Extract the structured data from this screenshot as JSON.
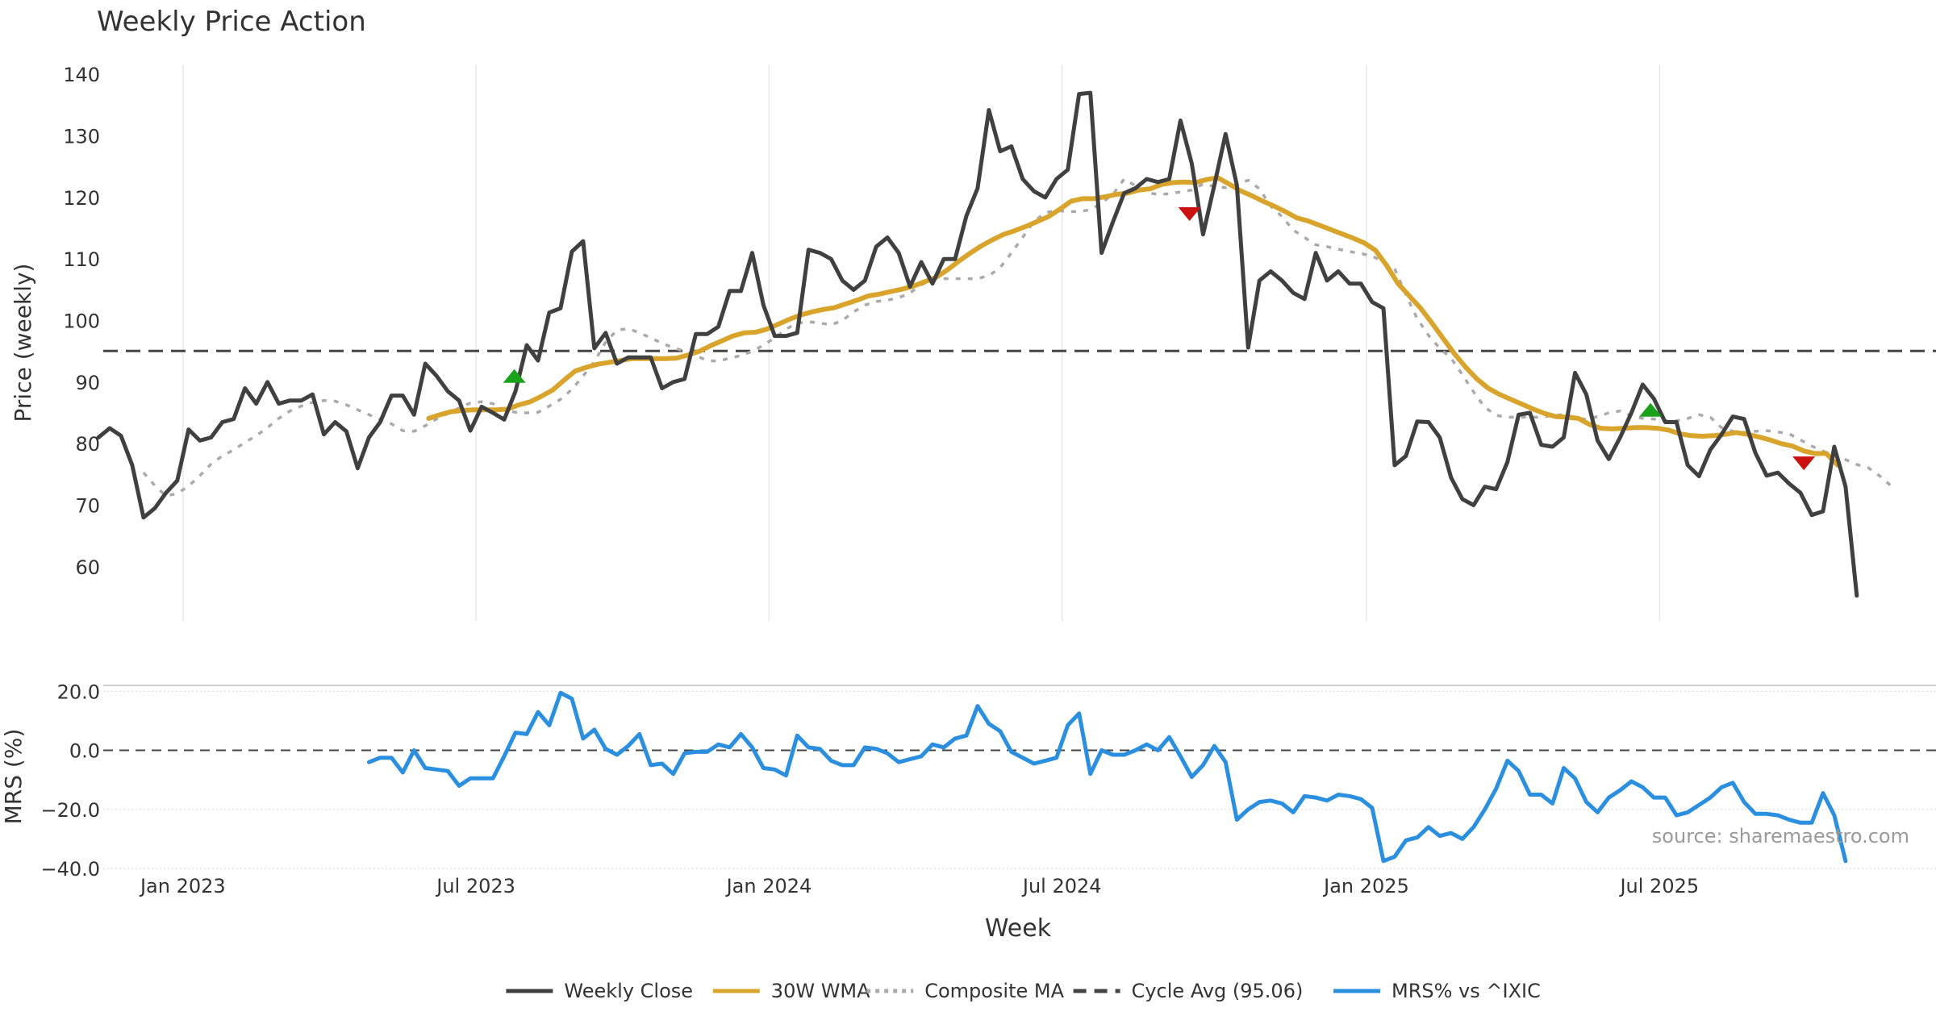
{
  "chart_data": {
    "type": "line",
    "title": "Weekly Price Action",
    "xlabel": "Week",
    "source": "source: sharemaestro.com",
    "colors": {
      "close": "#404040",
      "wma": "#d9a42b",
      "composite": "#aaaaaa",
      "cycle": "#444444",
      "mrs": "#2b8fe0",
      "buy": "#1aa31a",
      "sell": "#cc1111",
      "grid": "#e8e8e8"
    },
    "x_ticks": [
      {
        "label": "Jan 2023",
        "x": 52
      },
      {
        "label": "Jul 2023",
        "x": 78
      },
      {
        "label": "Jan 2024",
        "x": 104
      },
      {
        "label": "Jul 2024",
        "x": 130
      },
      {
        "label": "Jan 2025",
        "x": 157
      },
      {
        "label": "Jul 2025",
        "x": 183
      }
    ],
    "xlim": [
      44.5,
      202.3
    ],
    "price_panel": {
      "ylabel": "Price (weekly)",
      "ylim": [
        51.2,
        141.6
      ],
      "yticks": [
        60,
        70,
        80,
        90,
        100,
        110,
        120,
        130,
        140
      ],
      "cycle_avg": 95.06,
      "series": [
        {
          "name": "Weekly Close",
          "color_key": "close",
          "dash": "",
          "width": 5,
          "start": 44.5,
          "values": [
            81,
            82.5,
            81.3,
            76.5,
            68,
            69.5,
            72,
            74,
            82.3,
            80.5,
            81,
            83.5,
            84,
            89,
            86.5,
            90,
            86.5,
            87,
            87,
            88,
            81.5,
            83.5,
            82,
            76,
            81,
            83.5,
            87.8,
            87.8,
            84.7,
            93,
            91,
            88.5,
            87,
            82.1,
            86,
            85,
            83.9,
            88.5,
            96,
            93.5,
            101.3,
            102,
            111.2,
            112.9,
            95.5,
            98,
            93,
            94,
            94,
            94,
            89,
            90,
            90.5,
            97.8,
            97.8,
            99,
            104.8,
            104.8,
            111,
            102.5,
            97.5,
            97.5,
            98,
            111.5,
            111,
            110,
            106.5,
            105,
            106.5,
            112,
            113.5,
            111,
            105.5,
            109.5,
            106,
            110,
            110,
            117,
            121.5,
            134.2,
            127.5,
            128.3,
            123,
            121,
            120,
            123,
            124.5,
            136.8,
            137,
            111,
            116,
            120.7,
            121.5,
            123,
            122.5,
            123,
            132.5,
            125.5,
            114,
            122,
            130.3,
            122,
            95.6,
            106.5,
            108,
            106.5,
            104.5,
            103.5,
            111,
            106.5,
            108,
            106,
            106,
            103,
            102,
            76.5,
            78,
            83.6,
            83.5,
            81,
            74.5,
            71,
            70,
            73,
            72.6,
            77,
            84.7,
            85,
            79.8,
            79.5,
            81,
            91.5,
            88,
            80.5,
            77.5,
            81,
            85,
            89.6,
            87.3,
            83.5,
            83.5,
            76.5,
            74.7,
            79,
            81.5,
            84.4,
            84,
            78.5,
            74.8,
            75.3,
            73.5,
            72,
            68.4,
            69,
            79.5,
            73,
            55.3
          ]
        },
        {
          "name": "30W WMA",
          "color_key": "wma",
          "dash": "",
          "width": 6,
          "start": 73.8,
          "values": [
            84.1,
            84.7,
            85.2,
            85.4,
            85.5,
            85.5,
            85.5,
            85.6,
            86.3,
            86.8,
            87.7,
            88.7,
            90.3,
            91.8,
            92.4,
            92.9,
            93.2,
            93.5,
            93.8,
            93.8,
            93.8,
            93.8,
            93.9,
            94.4,
            95,
            95.9,
            96.7,
            97.5,
            98,
            98.1,
            98.6,
            99.4,
            100.2,
            100.9,
            101.4,
            101.8,
            102.1,
            102.7,
            103.3,
            104,
            104.3,
            104.7,
            105.1,
            105.6,
            106.3,
            107,
            108.2,
            109.6,
            110.9,
            112.1,
            113.1,
            114,
            114.6,
            115.3,
            116.1,
            116.9,
            118.1,
            119.4,
            119.8,
            119.8,
            120.1,
            120.5,
            120.7,
            121.2,
            121.4,
            122.1,
            122.4,
            122.5,
            122.4,
            122.9,
            123.2,
            122.2,
            121.1,
            120.3,
            119.4,
            118.6,
            117.7,
            116.7,
            116.2,
            115.5,
            114.8,
            114.1,
            113.4,
            112.6,
            111.4,
            108.9,
            106,
            104,
            102,
            99.6,
            97.1,
            94.6,
            92.4,
            90.5,
            89,
            88,
            87.2,
            86.4,
            85.6,
            84.9,
            84.4,
            84.3,
            84.1,
            83.1,
            82.5,
            82.4,
            82.5,
            82.6,
            82.6,
            82.5,
            82.2,
            81.6,
            81.3,
            81.2,
            81.3,
            81.5,
            81.8,
            81.5,
            81.1,
            80.6,
            80,
            79.6,
            78.8,
            78.4,
            78.4,
            76.5
          ]
        },
        {
          "name": "Composite MA",
          "color_key": "composite",
          "dash": "6 9",
          "width": 3.5,
          "start": 48.5,
          "values": [
            75.3,
            73.2,
            71.5,
            71.9,
            73.1,
            74.8,
            76.7,
            78,
            79,
            80.2,
            81.3,
            82.6,
            84.1,
            85.3,
            86.1,
            86.7,
            87,
            86.9,
            86.3,
            85.5,
            84.7,
            83.9,
            83.2,
            82.1,
            82,
            82.9,
            84,
            84.9,
            85.8,
            86.6,
            86.8,
            86.5,
            85.5,
            85.1,
            85,
            85.1,
            86.1,
            87.2,
            88.8,
            91,
            93.3,
            96.5,
            98.4,
            98.7,
            98,
            97.2,
            96.3,
            95.6,
            95,
            94.3,
            93.5,
            93.4,
            93.9,
            94.3,
            95,
            96,
            97.2,
            98.6,
            99.6,
            99.8,
            99.6,
            99.3,
            100,
            101.4,
            102.5,
            103.1,
            103.3,
            103.7,
            104.5,
            105.8,
            106.7,
            106.8,
            106.8,
            106.8,
            106.8,
            107.3,
            108.6,
            111,
            113.5,
            116.1,
            117.5,
            117.9,
            117.7,
            117.7,
            118,
            119.1,
            120.5,
            123,
            121.9,
            120.8,
            120.5,
            120.6,
            120.9,
            121.2,
            122.2,
            121.8,
            121.6,
            122.1,
            122.8,
            121.4,
            118.6,
            116.9,
            114.7,
            113.5,
            112.3,
            112,
            111.6,
            111.2,
            110.9,
            110.5,
            109.5,
            108.4,
            104.2,
            100.3,
            97.6,
            95.5,
            93.9,
            91.2,
            88.4,
            85.9,
            84.6,
            84.3,
            84.3,
            84.3,
            84.3,
            84.6,
            84.7,
            84.3,
            83.9,
            84.4,
            85,
            85.3,
            84.5,
            84.1,
            84,
            83.7,
            83.7,
            84.1,
            84.7,
            84.3,
            82.6,
            82,
            81.8,
            82,
            82.1,
            81.9,
            81.6,
            80.6,
            79.6,
            78.8,
            78,
            77.4,
            76.6,
            76.1,
            74.8,
            73.2
          ]
        }
      ],
      "signals": [
        {
          "type": "buy",
          "x": 81.4,
          "price": 91
        },
        {
          "type": "sell",
          "x": 141.3,
          "price": 117.3
        },
        {
          "type": "buy",
          "x": 182.2,
          "price": 85.5
        },
        {
          "type": "sell",
          "x": 195.8,
          "price": 76.8
        }
      ]
    },
    "mrs_panel": {
      "ylabel": "MRS (%)",
      "ylim": [
        -40,
        22
      ],
      "yticks": [
        -40,
        -20,
        0,
        20
      ],
      "ytick_labels": [
        "−40.0",
        "−20.0",
        "0.0",
        "20.0"
      ],
      "zero_line": 0,
      "series": [
        {
          "name": "MRS% vs ^IXIC",
          "color_key": "mrs",
          "dash": "",
          "width": 5,
          "start": 68.5,
          "values": [
            -4,
            -2.5,
            -2.5,
            -7.5,
            0,
            -6,
            -6.5,
            -7,
            -12,
            -9.5,
            -9.5,
            -9.5,
            -2,
            6,
            5.5,
            13,
            8.5,
            19.5,
            17.5,
            4,
            7,
            0.5,
            -1.5,
            1.5,
            5.5,
            -5,
            -4.5,
            -8,
            -1,
            -0.5,
            -0.5,
            2,
            1,
            5.5,
            1,
            -6,
            -6.5,
            -8.5,
            5,
            1,
            0.5,
            -3.5,
            -5,
            -5,
            1,
            0.5,
            -1,
            -4,
            -3,
            -2,
            2,
            1,
            4,
            5,
            15,
            9,
            6.5,
            -0.5,
            -2.5,
            -4.5,
            -3.5,
            -2.5,
            8.5,
            12.5,
            -8,
            0,
            -1.5,
            -1.5,
            0,
            2,
            0,
            4.5,
            -2,
            -9,
            -5,
            1.5,
            -4,
            -23.5,
            -20,
            -17.5,
            -17,
            -18,
            -21,
            -15.5,
            -16,
            -17,
            -15,
            -15.5,
            -16.5,
            -19.5,
            -37.5,
            -36,
            -30.5,
            -29.5,
            -26,
            -29,
            -28,
            -30,
            -26,
            -20,
            -13,
            -3.5,
            -7,
            -15,
            -15,
            -18,
            -6,
            -9.5,
            -17.5,
            -21,
            -16,
            -13.5,
            -10.5,
            -12.5,
            -16,
            -16,
            -22,
            -21,
            -18.5,
            -16,
            -12.5,
            -11,
            -17.5,
            -21.5,
            -21.5,
            -22,
            -23.5,
            -24.5,
            -24.5,
            -14.5,
            -22,
            -37.5
          ]
        }
      ]
    },
    "legend": [
      {
        "label": "Weekly Close",
        "color_key": "close",
        "dash": ""
      },
      {
        "label": "30W WMA",
        "color_key": "wma",
        "dash": ""
      },
      {
        "label": "Composite MA",
        "color_key": "composite",
        "dash": "5 6"
      },
      {
        "label": "Cycle Avg (95.06)",
        "color_key": "cycle",
        "dash": "16 10"
      },
      {
        "label": "MRS% vs ^IXIC",
        "color_key": "mrs",
        "dash": ""
      }
    ]
  }
}
